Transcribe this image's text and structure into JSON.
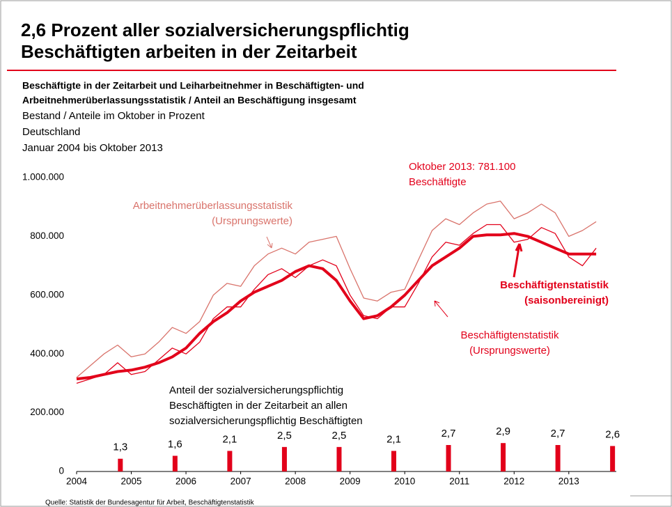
{
  "chart_data": {
    "type": "line",
    "title": [
      "2,6 Prozent aller sozialversicherungspflichtig",
      "Beschäftigten arbeiten in der Zeitarbeit"
    ],
    "subtitle": [
      "Beschäftigte in der Zeitarbeit und Leiharbeitnehmer in Beschäftigten- und",
      "Arbeitnehmerüberlassungsstatistik / Anteil an Beschäftigung insgesamt"
    ],
    "notes": [
      "Bestand / Anteile im Oktober in Prozent",
      "Deutschland",
      "Januar 2004 bis Oktober 2013"
    ],
    "annotations": [
      "Oktober 2013: 781.100",
      "Beschäftigte"
    ],
    "source": "Quelle: Statistik der Bundesagentur für Arbeit, Beschäftigtenstatistik",
    "x": [
      2004,
      2004.25,
      2004.5,
      2004.75,
      2005,
      2005.25,
      2005.5,
      2005.75,
      2006,
      2006.25,
      2006.5,
      2006.75,
      2007,
      2007.25,
      2007.5,
      2007.75,
      2008,
      2008.25,
      2008.5,
      2008.75,
      2009,
      2009.25,
      2009.5,
      2009.75,
      2010,
      2010.25,
      2010.5,
      2010.75,
      2011,
      2011.25,
      2011.5,
      2011.75,
      2012,
      2012.25,
      2012.5,
      2012.75,
      2013,
      2013.25,
      2013.5
    ],
    "xlim": [
      2004,
      2013.83
    ],
    "xticks": [
      2004,
      2005,
      2006,
      2007,
      2008,
      2009,
      2010,
      2011,
      2012,
      2013
    ],
    "ylim": [
      0,
      1000000
    ],
    "yticks": [
      0,
      {
        "value": 200000,
        "label": "200.000"
      },
      {
        "value": 400000,
        "label": "400.000"
      },
      {
        "value": 600000,
        "label": "600.000"
      },
      {
        "value": 800000,
        "label": "800.000"
      },
      {
        "value": 1000000,
        "label": "1.000.000"
      }
    ],
    "y2lim": [
      0,
      30
    ],
    "series": [
      {
        "name": [
          "Arbeitnehmerüberlassungsstatistik",
          "(Ursprungswerte)"
        ],
        "color": "#d9736b",
        "width": 1.3,
        "values": [
          320000,
          360000,
          400000,
          430000,
          390000,
          400000,
          440000,
          490000,
          470000,
          510000,
          600000,
          640000,
          630000,
          700000,
          740000,
          760000,
          740000,
          780000,
          790000,
          800000,
          690000,
          590000,
          580000,
          610000,
          620000,
          720000,
          820000,
          860000,
          840000,
          880000,
          910000,
          920000,
          860000,
          880000,
          910000,
          880000,
          800000,
          820000,
          850000
        ]
      },
      {
        "name": [
          "Beschäftigtenstatistik",
          "(Ursprungswerte)"
        ],
        "color": "#e2001a",
        "width": 1.3,
        "values": [
          300000,
          315000,
          330000,
          370000,
          330000,
          340000,
          380000,
          420000,
          400000,
          440000,
          520000,
          560000,
          560000,
          620000,
          670000,
          690000,
          660000,
          700000,
          720000,
          700000,
          600000,
          530000,
          520000,
          560000,
          560000,
          640000,
          730000,
          780000,
          770000,
          810000,
          840000,
          840000,
          780000,
          790000,
          830000,
          810000,
          730000,
          700000,
          760000
        ]
      },
      {
        "name": [
          "Beschäftigtenstatistik",
          "(saisonbereinigt)"
        ],
        "color": "#e2001a",
        "width": 4,
        "values": [
          315000,
          320000,
          330000,
          340000,
          345000,
          355000,
          370000,
          390000,
          420000,
          470000,
          510000,
          540000,
          580000,
          610000,
          630000,
          650000,
          680000,
          700000,
          690000,
          650000,
          580000,
          520000,
          530000,
          560000,
          600000,
          650000,
          700000,
          730000,
          760000,
          800000,
          805000,
          805000,
          810000,
          800000,
          780000,
          760000,
          740000,
          740000,
          740000
        ]
      },
      {
        "name": [
          "Anteil der sozialversicherungspflichtig",
          "Beschäftigten in der Zeitarbeit an allen",
          "sozialversicherungspflichtig  Beschäftigten"
        ],
        "type": "bar",
        "axis": "y2",
        "color": "#e2001a",
        "x": [
          2004.8,
          2005.8,
          2006.8,
          2007.8,
          2008.8,
          2009.8,
          2010.8,
          2011.8,
          2012.8,
          2013.8
        ],
        "values": [
          1.3,
          1.6,
          2.1,
          2.5,
          2.5,
          2.1,
          2.7,
          2.9,
          2.7,
          2.6
        ],
        "value_labels": [
          "1,3",
          "1,6",
          "2,1",
          "2,5",
          "2,5",
          "2,1",
          "2,7",
          "2,9",
          "2,7",
          "2,6"
        ]
      }
    ]
  }
}
